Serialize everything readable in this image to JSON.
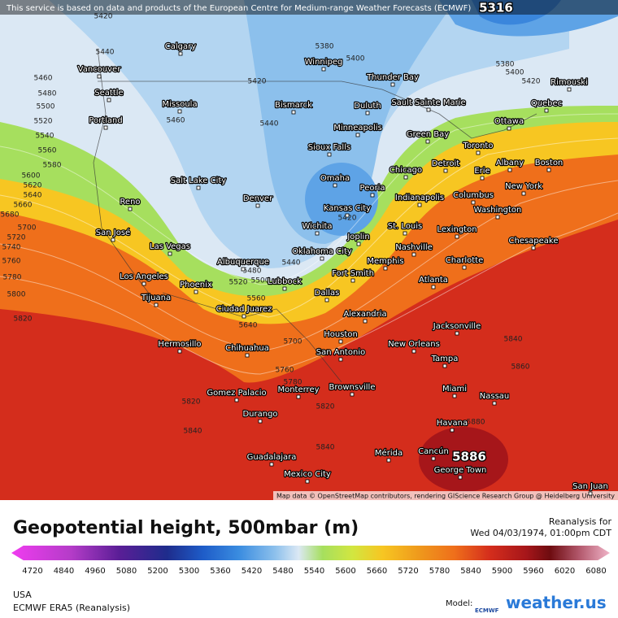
{
  "banner": "This service is based on data and products of the European Centre for Medium-range Weather Forecasts (ECMWF)",
  "attribution": "Map data © OpenStreetMap contributors, rendering GIScience Research Group @ Heidelberg University",
  "cities": [
    "Calgary",
    "Winnipeg",
    "Thunder Bay",
    "Rimouski",
    "Vancouver",
    "Seattle",
    "Missoula",
    "Bismarck",
    "Duluth",
    "Sault Sainte Marie",
    "Quebec",
    "Ottawa",
    "Portland",
    "Minneapolis",
    "Green Bay",
    "Toronto",
    "Sioux Falls",
    "Detroit",
    "Albany",
    "Boston",
    "Salt Lake City",
    "Chicago",
    "Erie",
    "Omaha",
    "New York",
    "Reno",
    "Denver",
    "Peoria",
    "Indianapolis",
    "Columbus",
    "Kansas City",
    "Washington",
    "San José",
    "Wichita",
    "St. Louis",
    "Lexington",
    "Joplin",
    "Las Vegas",
    "Oklahoma City",
    "Nashville",
    "Chesapeake",
    "Albuquerque",
    "Memphis",
    "Charlotte",
    "Los Angeles",
    "Fort Smith",
    "Phoenix",
    "Lubbock",
    "Atlanta",
    "Dallas",
    "Tijuana",
    "Ciudad Juarez",
    "Alexandria",
    "Jacksonville",
    "Houston",
    "Hermosillo",
    "Chihuahua",
    "New Orleans",
    "San Antonio",
    "Tampa",
    "Brownsville",
    "Miami",
    "Gomez Palacio",
    "Monterrey",
    "Nassau",
    "Durango",
    "Havana",
    "Guadalajara",
    "Mérida",
    "Cancún",
    "George Town",
    "Mexico City",
    "San Juan"
  ],
  "contour_labels": [
    5316,
    5420,
    5380,
    5400,
    5440,
    5380,
    5400,
    5420,
    5460,
    5480,
    5500,
    5520,
    5540,
    5560,
    5580,
    5600,
    5620,
    5640,
    5660,
    5680,
    5700,
    5720,
    5740,
    5760,
    5780,
    5800,
    5820,
    5820,
    5840,
    5840,
    5860,
    5880,
    5886,
    5420,
    5440,
    5460,
    5420,
    5440,
    5520,
    5480,
    5500,
    5560,
    5640,
    5700,
    5760,
    5780,
    5820,
    5840
  ],
  "legend": {
    "title": "Geopotential height, 500mbar (m)",
    "reanalysis_label": "Reanalysis for",
    "date": "Wed 04/03/1974, 01:00pm CDT",
    "ticks": [
      4720,
      4840,
      4960,
      5080,
      5200,
      5300,
      5360,
      5420,
      5480,
      5540,
      5600,
      5660,
      5720,
      5780,
      5840,
      5900,
      5960,
      6020,
      6080
    ]
  },
  "footer": {
    "region": "USA",
    "model_name": "ECMWF ERA5 (Reanalysis)",
    "model_label": "Model:",
    "ecmwf_logo": "ECMWF",
    "brand": "weather.us"
  }
}
